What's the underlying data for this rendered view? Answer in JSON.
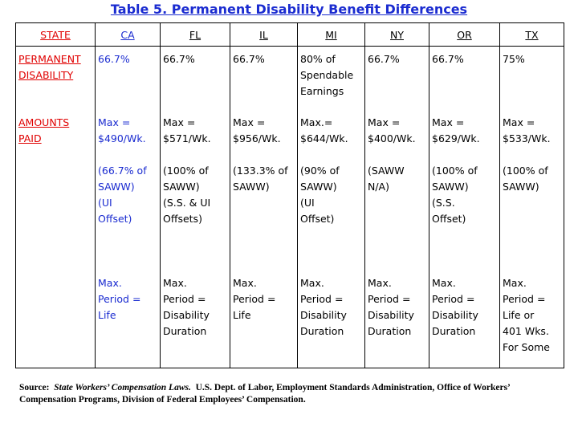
{
  "title": "Table 5.  Permanent Disability Benefit Differences",
  "headers": {
    "state": "STATE",
    "ca": "CA",
    "fl": "FL",
    "il": "IL",
    "mi": "MI",
    "ny": "NY",
    "or": "OR",
    "tx": "TX"
  },
  "labels": {
    "permanent": "PERMANENT\nDISABILITY",
    "amounts": "AMOUNTS\nPAID"
  },
  "ca": {
    "pct": "66.7%",
    "max": "Max =\n$490/Wk.",
    "note": "(66.7% of\nSAWW)\n(UI\nOffset)",
    "period": "Max.\nPeriod =\nLife"
  },
  "fl": {
    "pct": "66.7%",
    "max": "Max =\n$571/Wk.",
    "note": "(100% of\nSAWW)\n(S.S. & UI\nOffsets)",
    "period": "Max.\nPeriod =\nDisability\nDuration"
  },
  "il": {
    "pct": "66.7%",
    "max": "Max =\n$956/Wk.",
    "note": "(133.3% of\nSAWW)",
    "period": "Max.\nPeriod =\nLife"
  },
  "mi": {
    "pct": "80% of\nSpendable\nEarnings",
    "max": "Max.=\n$644/Wk.",
    "note": "(90% of\nSAWW)\n(UI\nOffset)",
    "period": "Max.\nPeriod =\nDisability\nDuration"
  },
  "ny": {
    "pct": "66.7%",
    "max": "Max =\n$400/Wk.",
    "note": "(SAWW\nN/A)",
    "period": "Max.\nPeriod =\nDisability\nDuration"
  },
  "or": {
    "pct": "66.7%",
    "max": "Max =\n$629/Wk.",
    "note": "(100% of\nSAWW)\n(S.S.\nOffset)",
    "period": "Max.\nPeriod =\nDisability\nDuration"
  },
  "tx": {
    "pct": "75%",
    "max": "Max =\n$533/Wk.",
    "note": "(100% of\nSAWW)",
    "period": "Max.\nPeriod =\nLife or\n401 Wks.\nFor Some"
  },
  "source": {
    "prefix": "Source:",
    "italic": "State Workers’ Compensation Laws.",
    "rest": "U.S. Dept. of Labor, Employment Standards Administration, Office of Workers’ Compensation Programs, Division of Federal Employees’ Compensation."
  }
}
